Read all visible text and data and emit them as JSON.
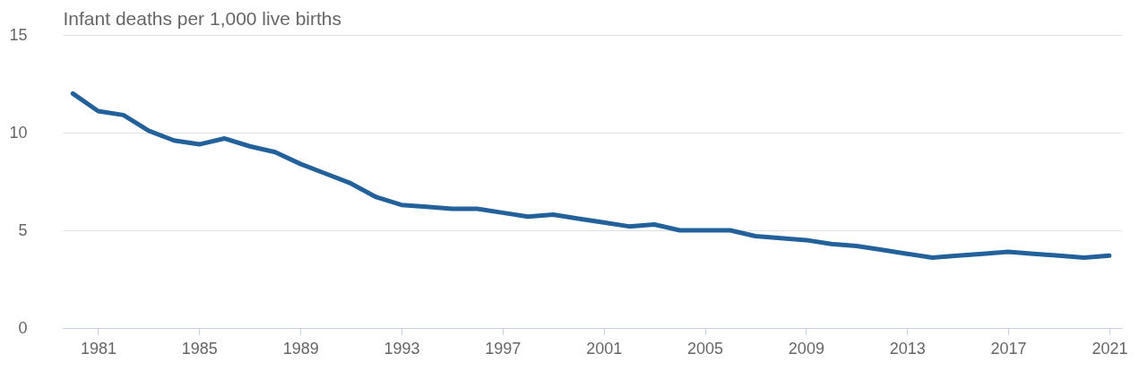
{
  "chart_data": {
    "type": "line",
    "ylabel": "Infant deaths per 1,000 live births",
    "x": [
      1980,
      1981,
      1982,
      1983,
      1984,
      1985,
      1986,
      1987,
      1988,
      1989,
      1990,
      1991,
      1992,
      1993,
      1994,
      1995,
      1996,
      1997,
      1998,
      1999,
      2000,
      2001,
      2002,
      2003,
      2004,
      2005,
      2006,
      2007,
      2008,
      2009,
      2010,
      2011,
      2012,
      2013,
      2014,
      2015,
      2016,
      2017,
      2018,
      2019,
      2020,
      2021
    ],
    "series": [
      {
        "color": "#23619a",
        "values": [
          12.0,
          11.1,
          10.9,
          10.1,
          9.6,
          9.4,
          9.7,
          9.3,
          9.0,
          8.4,
          7.9,
          7.4,
          6.7,
          6.3,
          6.2,
          6.1,
          6.1,
          5.9,
          5.7,
          5.8,
          5.6,
          5.4,
          5.2,
          5.3,
          5.0,
          5.0,
          5.0,
          4.7,
          4.6,
          4.5,
          4.3,
          4.2,
          4.0,
          3.8,
          3.6,
          3.7,
          3.8,
          3.9,
          3.8,
          3.7,
          3.6,
          3.7
        ]
      }
    ],
    "xlim": [
      1979.6,
      2021.5
    ],
    "xticks": [
      1981,
      1985,
      1989,
      1993,
      1997,
      2001,
      2005,
      2009,
      2013,
      2017,
      2021
    ],
    "ylim": [
      0,
      15
    ],
    "yticks": [
      0,
      5,
      10,
      15
    ],
    "grid": "y",
    "legend": false,
    "marker": "none",
    "line_style": "solid"
  }
}
